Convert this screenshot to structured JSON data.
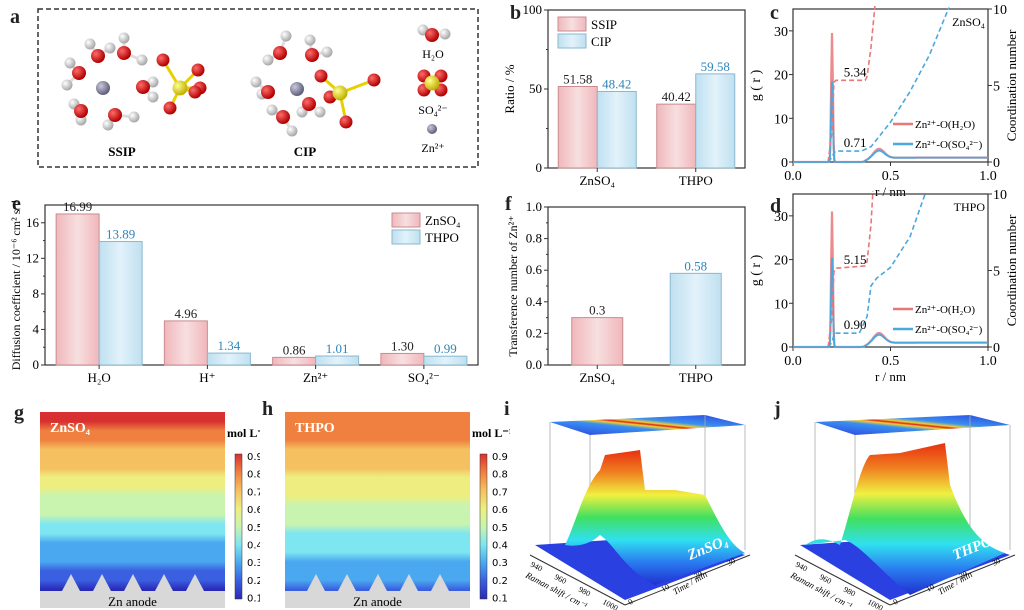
{
  "panel_labels": [
    "a",
    "b",
    "c",
    "d",
    "e",
    "f",
    "g",
    "h",
    "i",
    "j"
  ],
  "colors": {
    "pink": "#f0b7bb",
    "pink_edge": "#c98c90",
    "blue": "#bfe0f0",
    "blue_edge": "#8ab8cf",
    "blue_text": "#2f86b8",
    "red_line": "#e8777a",
    "blue_line": "#4aa8de"
  },
  "panel_a": {
    "structures": [
      "SSIP",
      "CIP"
    ],
    "legend": [
      {
        "label": "H2O",
        "display": "H₂O",
        "icon": "water-molecule-icon"
      },
      {
        "label": "SO42-",
        "display": "SO₄²⁻",
        "icon": "sulfate-ion-icon"
      },
      {
        "label": "Zn2+",
        "display": "Zn²⁺",
        "icon": "zinc-ion-icon"
      }
    ]
  },
  "chart_data": [
    {
      "id": "b",
      "type": "bar",
      "categories": [
        "ZnSO4",
        "THPO"
      ],
      "category_display": [
        "ZnSO₄",
        "THPO"
      ],
      "series": [
        {
          "name": "SSIP",
          "values": [
            51.58,
            40.42
          ],
          "labels": [
            "51.58",
            "40.42"
          ]
        },
        {
          "name": "CIP",
          "values": [
            48.42,
            59.58
          ],
          "labels": [
            "48.42",
            "59.58"
          ]
        }
      ],
      "xlabel": "",
      "ylabel": "Ratio / %",
      "ylim": [
        0,
        100
      ],
      "yticks": [
        0,
        50,
        100
      ],
      "legend": "top-left"
    },
    {
      "id": "c",
      "type": "line",
      "title": "ZnSO4",
      "title_display": "ZnSO₄",
      "xlabel": "r / nm",
      "ylabel": "g ( r )",
      "ylabel_right": "Coordination number",
      "xlim": [
        0,
        1.0
      ],
      "ylim": [
        0,
        35
      ],
      "ylim_right": [
        0,
        10
      ],
      "xticks": [
        "0.0",
        "0.5",
        "1.0"
      ],
      "yticks": [
        0,
        10,
        20,
        30
      ],
      "yticks_right": [
        0,
        5,
        10
      ],
      "series": [
        {
          "name": "Zn2+-O(H2O)",
          "display": "Zn²⁺-O(H₂O)",
          "peak_r": 0.2,
          "peak_g": 29.5,
          "second_peak_r": 0.44,
          "second_peak_g": 2.2
        },
        {
          "name": "Zn2+-O(SO42-)",
          "display": "Zn²⁺-O(SO₄²⁻)",
          "peak_r": 0.2,
          "peak_g": 18.5,
          "second_peak_r": 0.44,
          "second_peak_g": 1.8
        }
      ],
      "coordination": {
        "Zn2+-O(H2O)": 5.34,
        "Zn2+-O(SO42-)": 0.71
      },
      "annotations": [
        "5.34",
        "0.71"
      ],
      "legend": "bottom-right"
    },
    {
      "id": "d",
      "type": "line",
      "title": "THPO",
      "title_display": "THPO",
      "xlabel": "r / nm",
      "ylabel": "g ( r )",
      "ylabel_right": "Coordination number",
      "xlim": [
        0,
        1.0
      ],
      "ylim": [
        0,
        35
      ],
      "ylim_right": [
        0,
        10
      ],
      "xticks": [
        "0.0",
        "0.5",
        "1.0"
      ],
      "yticks": [
        0,
        10,
        20,
        30
      ],
      "yticks_right": [
        0,
        5,
        10
      ],
      "series": [
        {
          "name": "Zn2+-O(H2O)",
          "display": "Zn²⁺-O(H₂O)",
          "peak_r": 0.2,
          "peak_g": 31.0,
          "second_peak_r": 0.44,
          "second_peak_g": 2.4
        },
        {
          "name": "Zn2+-O(SO42-)",
          "display": "Zn²⁺-O(SO₄²⁻)",
          "peak_r": 0.2,
          "peak_g": 20.5,
          "second_peak_r": 0.44,
          "second_peak_g": 2.0
        }
      ],
      "coordination": {
        "Zn2+-O(H2O)": 5.15,
        "Zn2+-O(SO42-)": 0.9
      },
      "annotations": [
        "5.15",
        "0.90"
      ],
      "legend": "bottom-right"
    },
    {
      "id": "e",
      "type": "bar",
      "categories": [
        "H2O",
        "H+",
        "Zn2+",
        "SO42-"
      ],
      "category_display": [
        "H₂O",
        "H⁺",
        "Zn²⁺",
        "SO₄²⁻"
      ],
      "series": [
        {
          "name": "ZnSO4",
          "display": "ZnSO₄",
          "values": [
            16.99,
            4.96,
            0.86,
            1.3
          ],
          "labels": [
            "16.99",
            "4.96",
            "0.86",
            "1.30"
          ]
        },
        {
          "name": "THPO",
          "display": "THPO",
          "values": [
            13.89,
            1.34,
            1.01,
            0.99
          ],
          "labels": [
            "13.89",
            "1.34",
            "1.01",
            "0.99"
          ]
        }
      ],
      "xlabel": "",
      "ylabel": "Diffusion coefficient / 10⁻⁶ cm² s⁻¹",
      "ylim": [
        0,
        18
      ],
      "yticks": [
        0,
        4,
        8,
        12,
        16
      ],
      "legend": "top-right"
    },
    {
      "id": "f",
      "type": "bar",
      "categories": [
        "ZnSO4",
        "THPO"
      ],
      "category_display": [
        "ZnSO₄",
        "THPO"
      ],
      "values": [
        0.3,
        0.58
      ],
      "labels": [
        "0.3",
        "0.58"
      ],
      "xlabel": "",
      "ylabel": "Transference number of Zn²⁺",
      "ylim": [
        0,
        1.0
      ],
      "yticks": [
        "0.0",
        "0.2",
        "0.4",
        "0.6",
        "0.8",
        "1.0"
      ]
    },
    {
      "id": "g",
      "type": "heatmap",
      "title": "ZnSO4",
      "title_display": "ZnSO₄",
      "colorbar_label": "mol L⁻¹",
      "colorbar_range": [
        0.1,
        0.9
      ],
      "colorbar_ticks": [
        "0.9",
        "0.8",
        "0.7",
        "0.6",
        "0.5",
        "0.4",
        "0.3",
        "0.2",
        "0.1"
      ],
      "base_label": "Zn anode",
      "top_concentration": 0.9,
      "bottom_concentration": 0.1
    },
    {
      "id": "h",
      "type": "heatmap",
      "title": "THPO",
      "title_display": "THPO",
      "colorbar_label": "mol L⁻¹",
      "colorbar_range": [
        0.1,
        0.9
      ],
      "colorbar_ticks": [
        "0.9",
        "0.8",
        "0.7",
        "0.6",
        "0.5",
        "0.4",
        "0.3",
        "0.2",
        "0.1"
      ],
      "base_label": "Zn anode",
      "top_concentration": 0.85,
      "bottom_concentration": 0.2
    },
    {
      "id": "i",
      "type": "area",
      "title": "ZnSO4",
      "title_display": "ZnSO₄",
      "xlabel": "Raman shift / cm⁻¹",
      "ylabel": "Time / min",
      "xticks": [
        "940",
        "960",
        "980",
        "1000",
        "1020"
      ],
      "yticks": [
        "0",
        "10",
        "20",
        "30"
      ]
    },
    {
      "id": "j",
      "type": "area",
      "title": "THPO",
      "title_display": "THPO",
      "xlabel": "Raman shift / cm⁻¹",
      "ylabel": "Time / min",
      "xticks": [
        "940",
        "960",
        "980",
        "1000",
        "1020"
      ],
      "yticks": [
        "0",
        "10",
        "20",
        "30"
      ]
    }
  ]
}
